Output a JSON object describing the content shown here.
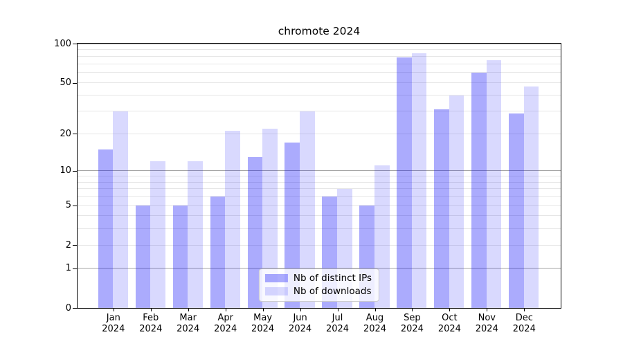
{
  "title": "chromote 2024",
  "chart_data": {
    "type": "bar",
    "title": "chromote 2024",
    "categories": [
      "Jan 2024",
      "Feb 2024",
      "Mar 2024",
      "Apr 2024",
      "May 2024",
      "Jun 2024",
      "Jul 2024",
      "Aug 2024",
      "Sep 2024",
      "Oct 2024",
      "Nov 2024",
      "Dec 2024"
    ],
    "series": [
      {
        "name": "Nb of distinct IPs",
        "color": "rgba(10,10,250,0.34)",
        "values": [
          15,
          5,
          5,
          6,
          13,
          17,
          6,
          5,
          78,
          31,
          60,
          29
        ]
      },
      {
        "name": "Nb of downloads",
        "color": "rgba(10,10,250,0.155)",
        "values": [
          30,
          12,
          12,
          21,
          22,
          30,
          7,
          11,
          84,
          40,
          75,
          47
        ]
      }
    ],
    "xlabel": "",
    "ylabel": "",
    "y_scale": "log1p",
    "ylim": [
      0,
      100
    ],
    "y_ticks": [
      0,
      1,
      2,
      5,
      10,
      20,
      50,
      100
    ],
    "y_gridlines_major": [
      1,
      10,
      100
    ],
    "y_gridlines_minor": [
      2,
      3,
      4,
      5,
      6,
      7,
      8,
      9,
      20,
      30,
      40,
      50,
      60,
      70,
      80,
      90
    ],
    "grid": true,
    "legend_position": "lower center"
  },
  "colors": {
    "grid_major": "#a3a3a3",
    "grid_minor": "#e6e6e6",
    "spine": "#000000",
    "background": "#ffffff",
    "legend_bg": "rgba(255,255,255,0.8)",
    "legend_border": "#cccccc"
  }
}
